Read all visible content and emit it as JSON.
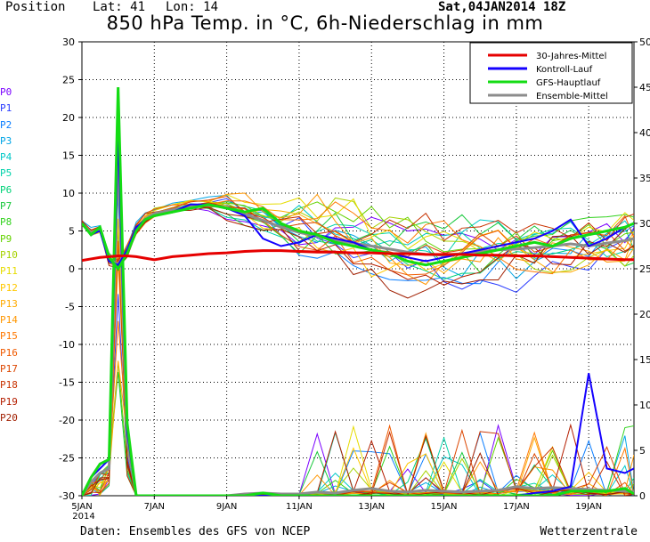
{
  "header": {
    "position_label": "Position",
    "lat_label": "Lat: 41",
    "lon_label": "Lon: 14",
    "run_date": "Sat,04JAN2014 18Z"
  },
  "footer": {
    "source": "Daten: Ensembles des GFS von NCEP",
    "brand": "Wetterzentrale"
  },
  "members": [
    "P0",
    "P1",
    "P2",
    "P3",
    "P4",
    "P5",
    "P6",
    "P7",
    "P8",
    "P9",
    "P10",
    "P11",
    "P12",
    "P13",
    "P14",
    "P15",
    "P16",
    "P17",
    "P18",
    "P19",
    "P20"
  ],
  "member_colors": [
    "#7a00ff",
    "#2a3cff",
    "#0a7dff",
    "#00a5e6",
    "#00c8c8",
    "#00d2aa",
    "#00d278",
    "#18c83c",
    "#32d21e",
    "#64d200",
    "#a6d200",
    "#e6dc00",
    "#ffc800",
    "#ffaa00",
    "#ff9600",
    "#ff7800",
    "#f05a00",
    "#dc4600",
    "#c83200",
    "#b41e00",
    "#a01e00"
  ],
  "chart_data": {
    "type": "line",
    "title": "850 hPa Temp. in °C, 6h-Niederschlag in mm",
    "ylim": [
      -30,
      30
    ],
    "y2lim": [
      0,
      50
    ],
    "yticks": [
      30,
      25,
      20,
      15,
      10,
      5,
      0,
      -5,
      -10,
      -15,
      -20,
      -25,
      -30
    ],
    "y2ticks": [
      50,
      45,
      40,
      35,
      30,
      25,
      20,
      15,
      10,
      5,
      0
    ],
    "xticks": [
      "5JAN",
      "7JAN",
      "9JAN",
      "11JAN",
      "13JAN",
      "15JAN",
      "17JAN",
      "19JAN"
    ],
    "xtick_year": "2014",
    "x_start_label": "5JAN 2014",
    "grid": true,
    "legend_position": "top-right",
    "legend": [
      {
        "name": "30-Jahres-Mittel",
        "color": "#e60000"
      },
      {
        "name": "Kontroll-Lauf",
        "color": "#1400ff"
      },
      {
        "name": "GFS-Hauptlauf",
        "color": "#14dc14"
      },
      {
        "name": "Ensemble-Mittel",
        "color": "#8c8c8c"
      }
    ],
    "x_days": [
      0,
      0.25,
      0.5,
      0.75,
      1,
      1.25,
      1.5,
      1.75,
      2,
      2.5,
      3,
      3.5,
      4,
      4.5,
      5,
      5.5,
      6,
      6.5,
      7,
      7.5,
      8,
      8.5,
      9,
      9.5,
      10,
      10.5,
      11,
      11.5,
      12,
      12.5,
      13,
      13.5,
      14,
      14.5,
      15,
      15.25
    ],
    "climate_mean": [
      1.1,
      1.3,
      1.5,
      1.6,
      1.7,
      1.7,
      1.6,
      1.4,
      1.2,
      1.6,
      1.8,
      2.0,
      2.1,
      2.3,
      2.4,
      2.4,
      2.3,
      2.2,
      2.2,
      2.1,
      2.1,
      2.0,
      2.0,
      1.9,
      1.9,
      1.9,
      1.8,
      1.8,
      1.7,
      1.7,
      1.6,
      1.5,
      1.4,
      1.3,
      1.2,
      1.2
    ],
    "control_run": [
      6.0,
      4.5,
      5.0,
      1.0,
      0.5,
      2.5,
      5.5,
      6.5,
      7.0,
      7.5,
      8.5,
      8.5,
      8.0,
      7.0,
      4.0,
      3.0,
      3.5,
      4.5,
      4.0,
      3.5,
      2.5,
      2.0,
      1.5,
      1.0,
      1.5,
      2.0,
      2.5,
      3.0,
      3.5,
      4.0,
      5.0,
      6.5,
      3.0,
      4.0,
      5.5,
      6.0
    ],
    "gfs_main": [
      6.0,
      4.5,
      5.5,
      1.5,
      0.0,
      2.0,
      5.0,
      6.5,
      7.0,
      7.5,
      8.0,
      8.5,
      8.0,
      7.5,
      8.0,
      6.0,
      5.0,
      4.5,
      3.5,
      3.0,
      2.5,
      2.0,
      1.0,
      0.5,
      1.0,
      1.5,
      2.0,
      2.5,
      3.0,
      3.5,
      3.0,
      4.0,
      4.5,
      5.0,
      5.5,
      6.0
    ],
    "ensemble_mean": [
      6.0,
      4.8,
      5.2,
      1.2,
      0.6,
      2.4,
      5.3,
      6.6,
      7.3,
      7.8,
      8.3,
      8.4,
      8.1,
      7.2,
      6.4,
      5.5,
      4.8,
      4.3,
      3.8,
      3.4,
      3.0,
      2.6,
      2.2,
      1.9,
      1.8,
      2.0,
      2.3,
      2.5,
      2.6,
      2.8,
      3.0,
      3.3,
      3.0,
      3.4,
      3.7,
      4.0
    ],
    "precip_mm_main": [
      0,
      2,
      3.5,
      4,
      45,
      8,
      0,
      0,
      0,
      0,
      0,
      0,
      0,
      0,
      0.3,
      0,
      0,
      0,
      0,
      0,
      0,
      0,
      0,
      0,
      0,
      0,
      0,
      0,
      0,
      0,
      0,
      0.5,
      0.5,
      0.5,
      0.8,
      0.2
    ],
    "precip_mm_control": [
      0,
      2,
      3,
      4,
      40,
      7,
      0,
      0,
      0,
      0,
      0,
      0,
      0,
      0,
      0,
      0,
      0,
      0,
      0,
      0,
      0,
      0,
      0,
      0,
      0,
      0,
      0,
      0,
      0,
      0.3,
      0.5,
      1,
      13.5,
      3,
      2.5,
      3
    ],
    "precip_mm_mean": [
      0,
      1.5,
      2.5,
      3,
      38,
      6,
      0,
      0,
      0,
      0,
      0,
      0,
      0,
      0.2,
      0.3,
      0.2,
      0.2,
      0.4,
      0.3,
      0.6,
      0.8,
      0.5,
      0.4,
      0.6,
      0.5,
      0.4,
      0.5,
      0.6,
      1.0,
      0.8,
      0.9,
      0.8,
      0.7,
      0.6,
      0.5,
      0.4
    ]
  }
}
